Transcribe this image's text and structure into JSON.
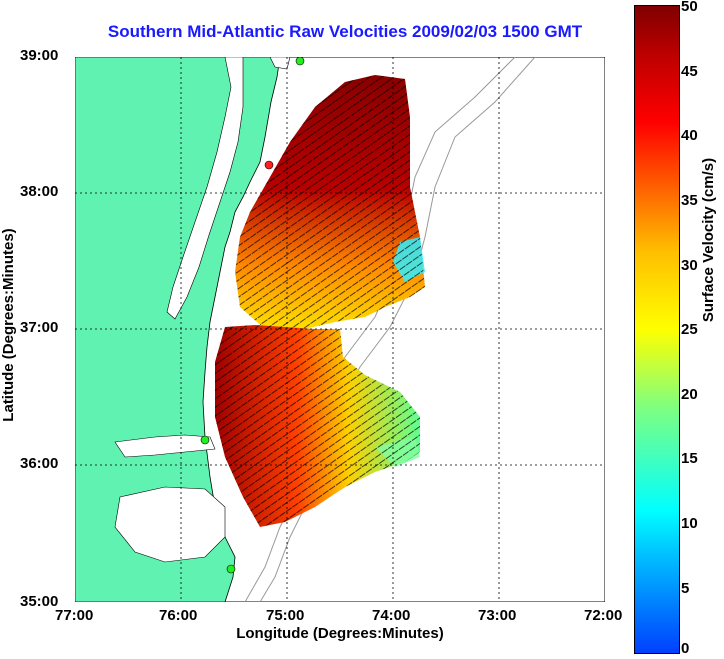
{
  "title": "Southern Mid-Atlantic Raw Velocities 2009/02/03 1500 GMT",
  "xlabel": "Longitude (Degrees:Minutes)",
  "ylabel": "Latitude (Degrees:Minutes)",
  "colorbar_label": "Surface Velocity (cm/s)",
  "xticks": [
    "77:00",
    "76:00",
    "75:00",
    "74:00",
    "73:00",
    "72:00"
  ],
  "yticks": [
    "39:00",
    "38:00",
    "37:00",
    "36:00",
    "35:00"
  ],
  "cbticks": [
    "50",
    "45",
    "40",
    "35",
    "30",
    "25",
    "20",
    "15",
    "10",
    "5",
    "0"
  ],
  "colors": {
    "land": "#5ff2b0",
    "title": "#1a1aff",
    "arrows": "#000000",
    "station": "#22ee22"
  }
}
